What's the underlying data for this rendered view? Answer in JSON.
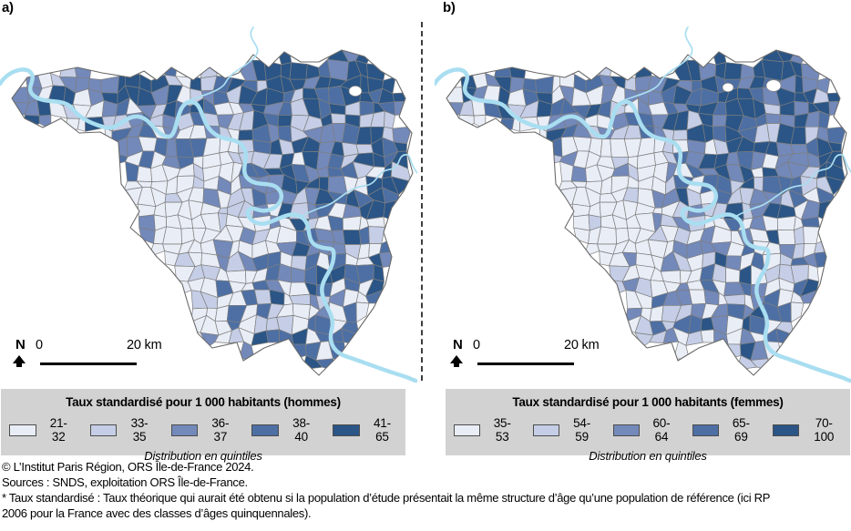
{
  "panels": [
    {
      "label": "a)",
      "scalebar": {
        "north": "N",
        "zero": "0",
        "distance": "20 km"
      },
      "legend": {
        "title": "Taux standardisé pour 1 000 habitants (hommes)",
        "classes": [
          {
            "range": "21-32",
            "color": "#e9edf6"
          },
          {
            "range": "33-35",
            "color": "#c5cee6"
          },
          {
            "range": "36-37",
            "color": "#7389ba"
          },
          {
            "range": "38-40",
            "color": "#4d6fa4"
          },
          {
            "range": "41-65",
            "color": "#2a5586"
          }
        ],
        "note": "Distribution en quintiles"
      }
    },
    {
      "label": "b)",
      "scalebar": {
        "north": "N",
        "zero": "0",
        "distance": "20 km"
      },
      "legend": {
        "title": "Taux standardisé pour 1 000 habitants (femmes)",
        "classes": [
          {
            "range": "35-53",
            "color": "#e9edf6"
          },
          {
            "range": "54-59",
            "color": "#c5cee6"
          },
          {
            "range": "60-64",
            "color": "#7389ba"
          },
          {
            "range": "65-69",
            "color": "#4d6fa4"
          },
          {
            "range": "70-100",
            "color": "#2a5586"
          }
        ],
        "note": "Distribution en quintiles"
      }
    }
  ],
  "map": {
    "quintile_colors": [
      "#e9edf6",
      "#c5cee6",
      "#7389ba",
      "#4d6fa4",
      "#2a5586"
    ],
    "river_color": "#a9def1",
    "commune_border_color": "#7e7e7e",
    "outline_color": "#6a6a6a",
    "legend_background": "#d2d2d2"
  },
  "footer": {
    "lines": [
      "© L’Institut Paris Région, ORS Île-de-France 2024.",
      "Sources : SNDS, exploitation ORS Île-de-France.",
      "* Taux standardisé : Taux théorique qui aurait été obtenu si la population d’étude présentait la même structure d’âge qu’une population de référence (ici RP",
      "2006 pour la France avec des classes d’âges quinquennales)."
    ]
  }
}
